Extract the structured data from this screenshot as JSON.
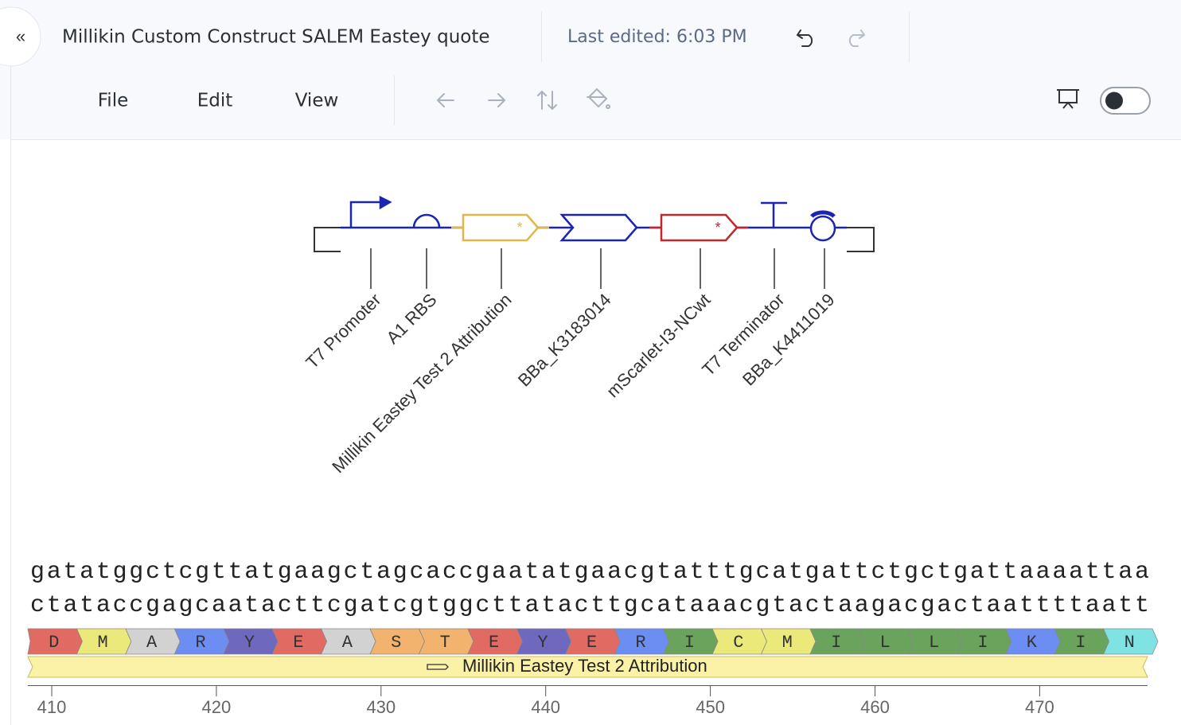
{
  "header": {
    "title": "Millikin Custom Construct SALEM Eastey quote",
    "last_edited": "Last edited: 6:03 PM"
  },
  "menu": [
    "File",
    "Edit",
    "View"
  ],
  "parts": [
    "T7 Promoter",
    "A1 RBS",
    "Millikin Eastey Test 2 Attribution",
    "BBa_K3183014",
    "mScarlet-I3-NCwt",
    "T7 Terminator",
    "BBa_K4411019"
  ],
  "sequence": {
    "top": "gatatggctcgttatgaagctagcaccgaatatgaacgtatttgcatgattctgctgattaaaattaa",
    "bottom": "ctataccgagcaatacttcgatcgtggcttatacttgcataaacgtactaagacgactaattttaatt"
  },
  "translation": [
    "D",
    "M",
    "A",
    "R",
    "Y",
    "E",
    "A",
    "S",
    "T",
    "E",
    "Y",
    "E",
    "R",
    "I",
    "C",
    "M",
    "I",
    "L",
    "L",
    "I",
    "K",
    "I",
    "N"
  ],
  "feature": {
    "label": "Millikin Eastey Test 2 Attribution"
  },
  "ruler": {
    "ticks": [
      410,
      420,
      430,
      440,
      450,
      460,
      470
    ]
  }
}
